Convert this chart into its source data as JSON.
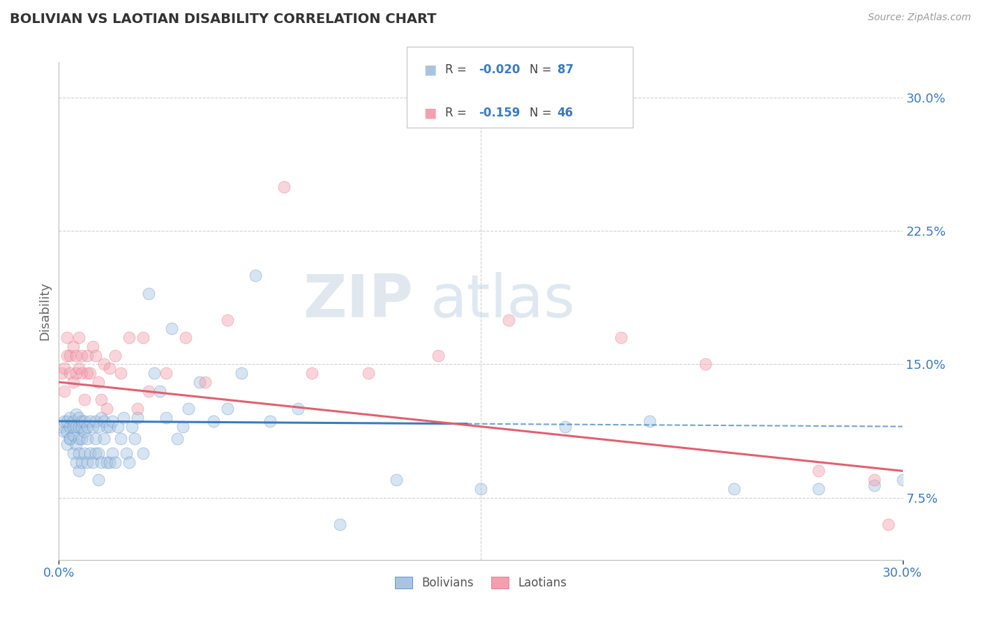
{
  "title": "BOLIVIAN VS LAOTIAN DISABILITY CORRELATION CHART",
  "source_text": "Source: ZipAtlas.com",
  "ylabel": "Disability",
  "xmin": 0.0,
  "xmax": 0.3,
  "ymin": 0.04,
  "ymax": 0.32,
  "bolivians_R": -0.02,
  "bolivians_N": 87,
  "laotians_R": -0.159,
  "laotians_N": 46,
  "bolivians_color": "#a8c4e0",
  "laotians_color": "#f2a0b0",
  "bolivians_line_color": "#3a7abf",
  "laotians_line_color": "#e06070",
  "background_color": "#ffffff",
  "grid_color": "#cccccc",
  "dot_size": 150,
  "dot_alpha": 0.45,
  "line_width": 2.2,
  "blue_line_solid_end": 0.145,
  "blue_line_start_y": 0.118,
  "blue_line_end_y": 0.115,
  "pink_line_start_y": 0.14,
  "pink_line_end_y": 0.09,
  "bolivians_x": [
    0.001,
    0.002,
    0.002,
    0.003,
    0.003,
    0.003,
    0.004,
    0.004,
    0.004,
    0.004,
    0.005,
    0.005,
    0.005,
    0.005,
    0.006,
    0.006,
    0.006,
    0.006,
    0.007,
    0.007,
    0.007,
    0.007,
    0.007,
    0.008,
    0.008,
    0.008,
    0.008,
    0.009,
    0.009,
    0.009,
    0.01,
    0.01,
    0.01,
    0.011,
    0.011,
    0.012,
    0.012,
    0.013,
    0.013,
    0.013,
    0.014,
    0.014,
    0.014,
    0.015,
    0.015,
    0.016,
    0.016,
    0.017,
    0.017,
    0.018,
    0.018,
    0.019,
    0.019,
    0.02,
    0.021,
    0.022,
    0.023,
    0.024,
    0.025,
    0.026,
    0.027,
    0.028,
    0.03,
    0.032,
    0.034,
    0.036,
    0.038,
    0.04,
    0.042,
    0.044,
    0.046,
    0.05,
    0.055,
    0.06,
    0.065,
    0.07,
    0.075,
    0.085,
    0.1,
    0.12,
    0.15,
    0.18,
    0.21,
    0.24,
    0.27,
    0.29,
    0.3
  ],
  "bolivians_y": [
    0.115,
    0.112,
    0.118,
    0.105,
    0.112,
    0.118,
    0.108,
    0.115,
    0.12,
    0.108,
    0.1,
    0.11,
    0.118,
    0.115,
    0.095,
    0.105,
    0.115,
    0.122,
    0.09,
    0.1,
    0.108,
    0.115,
    0.12,
    0.095,
    0.108,
    0.115,
    0.118,
    0.1,
    0.112,
    0.118,
    0.095,
    0.108,
    0.115,
    0.1,
    0.118,
    0.095,
    0.115,
    0.1,
    0.118,
    0.108,
    0.085,
    0.1,
    0.115,
    0.095,
    0.12,
    0.108,
    0.118,
    0.095,
    0.115,
    0.095,
    0.115,
    0.1,
    0.118,
    0.095,
    0.115,
    0.108,
    0.12,
    0.1,
    0.095,
    0.115,
    0.108,
    0.12,
    0.1,
    0.19,
    0.145,
    0.135,
    0.12,
    0.17,
    0.108,
    0.115,
    0.125,
    0.14,
    0.118,
    0.125,
    0.145,
    0.2,
    0.118,
    0.125,
    0.06,
    0.085,
    0.08,
    0.115,
    0.118,
    0.08,
    0.08,
    0.082,
    0.085
  ],
  "laotians_x": [
    0.001,
    0.002,
    0.002,
    0.003,
    0.003,
    0.004,
    0.004,
    0.005,
    0.005,
    0.006,
    0.006,
    0.007,
    0.007,
    0.008,
    0.008,
    0.009,
    0.01,
    0.01,
    0.011,
    0.012,
    0.013,
    0.014,
    0.015,
    0.016,
    0.017,
    0.018,
    0.02,
    0.022,
    0.025,
    0.028,
    0.03,
    0.032,
    0.038,
    0.045,
    0.052,
    0.06,
    0.08,
    0.09,
    0.11,
    0.135,
    0.16,
    0.2,
    0.23,
    0.27,
    0.29,
    0.295
  ],
  "laotians_y": [
    0.145,
    0.148,
    0.135,
    0.155,
    0.165,
    0.145,
    0.155,
    0.14,
    0.16,
    0.145,
    0.155,
    0.148,
    0.165,
    0.145,
    0.155,
    0.13,
    0.155,
    0.145,
    0.145,
    0.16,
    0.155,
    0.14,
    0.13,
    0.15,
    0.125,
    0.148,
    0.155,
    0.145,
    0.165,
    0.125,
    0.165,
    0.135,
    0.145,
    0.165,
    0.14,
    0.175,
    0.25,
    0.145,
    0.145,
    0.155,
    0.175,
    0.165,
    0.15,
    0.09,
    0.085,
    0.06
  ],
  "yticks": [
    0.075,
    0.15,
    0.225,
    0.3
  ],
  "ytick_labels": [
    "7.5%",
    "15.0%",
    "22.5%",
    "30.0%"
  ]
}
